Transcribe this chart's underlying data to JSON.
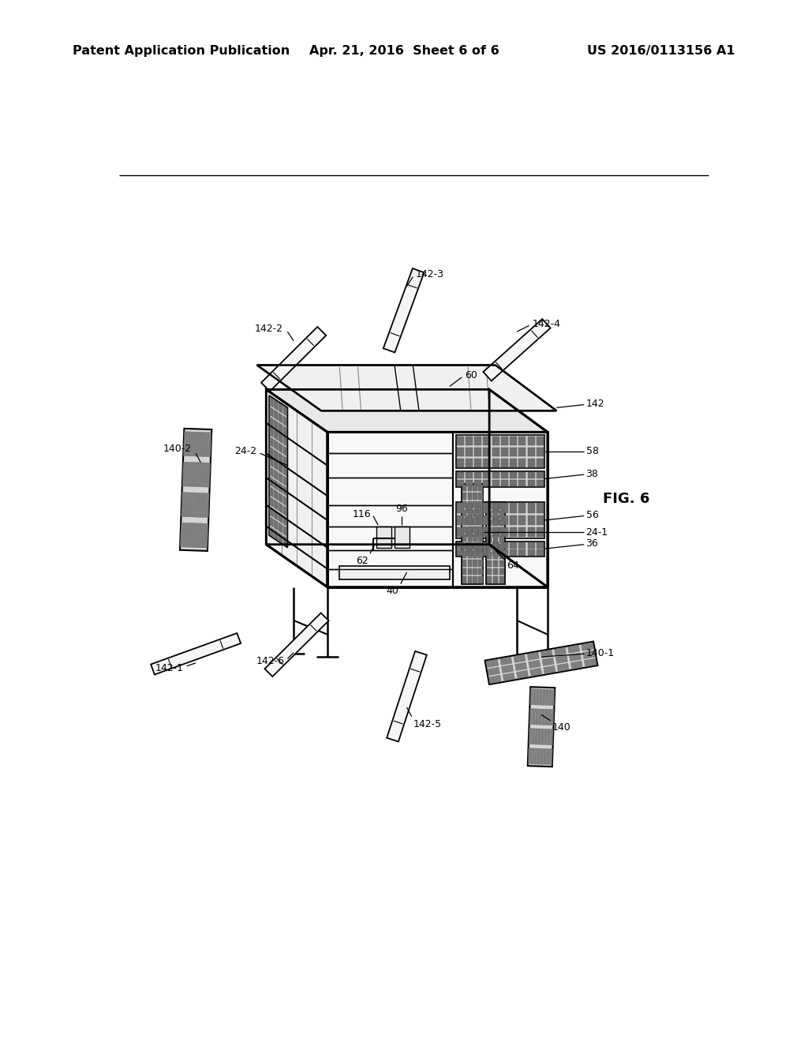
{
  "bg_color": "#ffffff",
  "header_left": "Patent Application Publication",
  "header_center": "Apr. 21, 2016  Sheet 6 of 6",
  "header_right": "US 2016/0113156 A1",
  "fig_label": "FIG. 6",
  "header_fontsize": 11.5
}
